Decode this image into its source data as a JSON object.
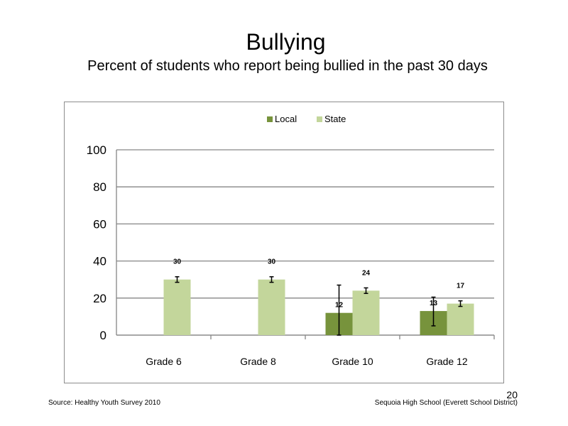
{
  "slide": {
    "title": "Bullying",
    "subtitle": "Percent of students who report being bullied in the past 30 days",
    "source": "Source: Healthy Youth Survey 2010",
    "school": "Sequoia High School (Everett School District)",
    "page_number": "20"
  },
  "chart_data": {
    "type": "bar",
    "title": "",
    "xlabel": "",
    "ylabel": "",
    "categories": [
      "Grade 6",
      "Grade 8",
      "Grade 10",
      "Grade 12"
    ],
    "ylim": [
      0,
      100
    ],
    "yticks": [
      0,
      20,
      40,
      60,
      80,
      100
    ],
    "grid": true,
    "legend_position": "top",
    "series": [
      {
        "name": "Local",
        "color": "#77933c",
        "values": [
          null,
          null,
          12,
          13
        ],
        "labels": [
          "",
          "",
          "12",
          "13"
        ],
        "error_low": [
          null,
          null,
          0,
          5
        ],
        "error_high": [
          null,
          null,
          27,
          20.5
        ]
      },
      {
        "name": "State",
        "color": "#c3d69b",
        "values": [
          30,
          30,
          24,
          17
        ],
        "labels": [
          "30",
          "30",
          "24",
          "17"
        ],
        "error_low": [
          28.5,
          28.5,
          22.5,
          15.5
        ],
        "error_high": [
          31.5,
          31.5,
          25.5,
          18.5
        ]
      }
    ]
  }
}
